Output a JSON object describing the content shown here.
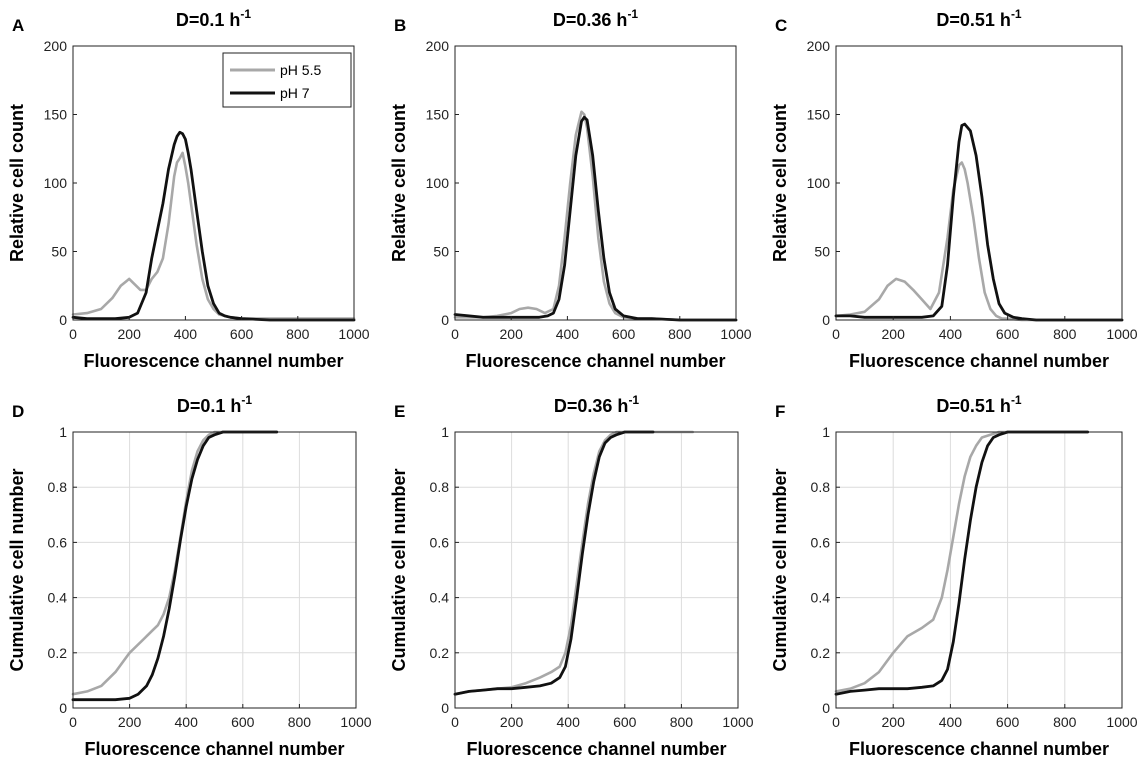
{
  "colors": {
    "ph55": "#a8a8a8",
    "ph7": "#111111"
  },
  "legend": {
    "items": [
      "pH 5.5",
      "pH 7"
    ]
  },
  "chart_data": [
    {
      "id": "A",
      "letter": "A",
      "type": "line",
      "title": "D=0.1 h",
      "title_exp": "-1",
      "xlabel": "Fluorescence channel number",
      "ylabel": "Relative cell count",
      "xlim": [
        0,
        1000
      ],
      "ylim": [
        0,
        200
      ],
      "xticks": [
        0,
        200,
        400,
        600,
        800,
        1000
      ],
      "yticks": [
        0,
        50,
        100,
        150,
        200
      ],
      "grid": false,
      "legend": "top-right",
      "series": [
        {
          "name": "pH 5.5",
          "color": "#a8a8a8",
          "x": [
            0,
            50,
            100,
            140,
            170,
            200,
            220,
            240,
            260,
            280,
            300,
            320,
            340,
            360,
            370,
            380,
            390,
            400,
            410,
            420,
            440,
            460,
            480,
            500,
            520,
            540,
            560,
            600,
            700,
            800,
            900,
            1000
          ],
          "y": [
            4,
            5,
            8,
            16,
            25,
            30,
            26,
            22,
            22,
            30,
            35,
            45,
            70,
            105,
            115,
            118,
            122,
            112,
            100,
            85,
            55,
            30,
            15,
            8,
            4,
            3,
            2,
            1,
            1,
            1,
            1,
            1
          ]
        },
        {
          "name": "pH 7",
          "color": "#111111",
          "x": [
            0,
            50,
            100,
            150,
            200,
            230,
            260,
            280,
            300,
            320,
            340,
            360,
            370,
            380,
            390,
            400,
            410,
            420,
            440,
            460,
            480,
            500,
            520,
            540,
            560,
            600,
            700,
            800,
            900,
            1000
          ],
          "y": [
            2,
            1,
            1,
            1,
            2,
            5,
            20,
            45,
            65,
            85,
            110,
            128,
            134,
            137,
            136,
            132,
            122,
            110,
            80,
            50,
            25,
            12,
            5,
            3,
            2,
            1,
            0,
            0,
            0,
            0
          ]
        }
      ]
    },
    {
      "id": "B",
      "letter": "B",
      "type": "line",
      "title": "D=0.36 h",
      "title_exp": "-1",
      "xlabel": "Fluorescence channel number",
      "ylabel": "Relative cell count",
      "xlim": [
        0,
        1000
      ],
      "ylim": [
        0,
        200
      ],
      "xticks": [
        0,
        200,
        400,
        600,
        800,
        1000
      ],
      "yticks": [
        0,
        50,
        100,
        150,
        200
      ],
      "grid": false,
      "series": [
        {
          "name": "pH 5.5",
          "color": "#a8a8a8",
          "x": [
            0,
            50,
            100,
            150,
            200,
            230,
            260,
            290,
            320,
            350,
            370,
            390,
            410,
            430,
            450,
            460,
            470,
            490,
            510,
            530,
            550,
            570,
            600,
            650,
            700,
            800,
            900,
            1000
          ],
          "y": [
            2,
            2,
            2,
            3,
            5,
            8,
            9,
            8,
            5,
            8,
            25,
            60,
            100,
            135,
            152,
            150,
            140,
            105,
            60,
            28,
            12,
            5,
            2,
            1,
            1,
            0,
            0,
            0
          ]
        },
        {
          "name": "pH 7",
          "color": "#111111",
          "x": [
            0,
            50,
            100,
            150,
            200,
            250,
            300,
            330,
            350,
            370,
            390,
            410,
            430,
            450,
            460,
            470,
            490,
            510,
            530,
            550,
            570,
            600,
            650,
            700,
            800,
            900,
            1000
          ],
          "y": [
            4,
            3,
            2,
            2,
            2,
            2,
            2,
            3,
            5,
            15,
            40,
            80,
            120,
            145,
            148,
            146,
            120,
            80,
            45,
            20,
            8,
            3,
            1,
            1,
            0,
            0,
            0
          ]
        }
      ]
    },
    {
      "id": "C",
      "letter": "C",
      "type": "line",
      "title": "D=0.51 h",
      "title_exp": "-1",
      "xlabel": "Fluorescence channel number",
      "ylabel": "Relative cell count",
      "xlim": [
        0,
        1000
      ],
      "ylim": [
        0,
        200
      ],
      "xticks": [
        0,
        200,
        400,
        600,
        800,
        1000
      ],
      "yticks": [
        0,
        50,
        100,
        150,
        200
      ],
      "grid": false,
      "series": [
        {
          "name": "pH 5.5",
          "color": "#a8a8a8",
          "x": [
            0,
            50,
            100,
            150,
            180,
            210,
            240,
            270,
            300,
            330,
            360,
            390,
            410,
            430,
            440,
            450,
            460,
            480,
            500,
            520,
            540,
            560,
            580,
            600,
            650,
            700,
            800,
            900,
            1000
          ],
          "y": [
            3,
            4,
            6,
            15,
            25,
            30,
            28,
            22,
            15,
            8,
            20,
            60,
            95,
            113,
            115,
            110,
            100,
            75,
            45,
            20,
            8,
            3,
            1,
            1,
            0,
            0,
            0,
            0,
            0
          ]
        },
        {
          "name": "pH 7",
          "color": "#111111",
          "x": [
            0,
            50,
            100,
            150,
            200,
            250,
            300,
            340,
            370,
            390,
            410,
            430,
            440,
            450,
            470,
            490,
            510,
            530,
            550,
            570,
            590,
            620,
            650,
            700,
            800,
            900,
            1000
          ],
          "y": [
            3,
            3,
            2,
            2,
            2,
            2,
            2,
            3,
            10,
            40,
            90,
            130,
            142,
            143,
            138,
            120,
            90,
            55,
            30,
            12,
            5,
            2,
            1,
            0,
            0,
            0,
            0
          ]
        }
      ]
    },
    {
      "id": "D",
      "letter": "D",
      "type": "line",
      "title": "D=0.1 h",
      "title_exp": "-1",
      "xlabel": "Fluorescence channel number",
      "ylabel": "Cumulative cell number",
      "xlim": [
        0,
        1000
      ],
      "ylim": [
        0,
        1
      ],
      "xticks": [
        0,
        200,
        400,
        600,
        800,
        1000
      ],
      "yticks": [
        0,
        0.2,
        0.4,
        0.6,
        0.8,
        1
      ],
      "grid": true,
      "series": [
        {
          "name": "pH 5.5",
          "color": "#a8a8a8",
          "x": [
            0,
            50,
            100,
            150,
            200,
            250,
            280,
            300,
            320,
            340,
            360,
            380,
            400,
            420,
            440,
            460,
            480,
            500,
            530,
            560,
            600,
            650,
            700,
            720
          ],
          "y": [
            0.05,
            0.06,
            0.08,
            0.13,
            0.2,
            0.25,
            0.28,
            0.3,
            0.34,
            0.4,
            0.5,
            0.62,
            0.75,
            0.86,
            0.93,
            0.97,
            0.99,
            1,
            1,
            1,
            1,
            1,
            1,
            1
          ]
        },
        {
          "name": "pH 7",
          "color": "#111111",
          "x": [
            0,
            50,
            100,
            150,
            200,
            230,
            260,
            280,
            300,
            320,
            340,
            360,
            380,
            400,
            420,
            440,
            460,
            480,
            500,
            530,
            560,
            600,
            650,
            700,
            720
          ],
          "y": [
            0.03,
            0.03,
            0.03,
            0.03,
            0.035,
            0.05,
            0.08,
            0.12,
            0.18,
            0.26,
            0.36,
            0.48,
            0.61,
            0.73,
            0.83,
            0.9,
            0.95,
            0.98,
            0.99,
            1,
            1,
            1,
            1,
            1,
            1
          ]
        }
      ]
    },
    {
      "id": "E",
      "letter": "E",
      "type": "line",
      "title": "D=0.36 h",
      "title_exp": "-1",
      "xlabel": "Fluorescence channel number",
      "ylabel": "Cumulative cell number",
      "xlim": [
        0,
        1000
      ],
      "ylim": [
        0,
        1
      ],
      "xticks": [
        0,
        200,
        400,
        600,
        800,
        1000
      ],
      "yticks": [
        0,
        0.2,
        0.4,
        0.6,
        0.8,
        1
      ],
      "grid": true,
      "series": [
        {
          "name": "pH 5.5",
          "color": "#a8a8a8",
          "x": [
            0,
            50,
            100,
            150,
            200,
            250,
            300,
            340,
            370,
            390,
            410,
            430,
            450,
            470,
            490,
            510,
            530,
            550,
            570,
            600,
            650,
            700,
            750,
            800,
            840
          ],
          "y": [
            0.05,
            0.06,
            0.065,
            0.07,
            0.075,
            0.09,
            0.11,
            0.13,
            0.15,
            0.2,
            0.3,
            0.45,
            0.6,
            0.74,
            0.85,
            0.93,
            0.97,
            0.99,
            1,
            1,
            1,
            1,
            1,
            1,
            1
          ]
        },
        {
          "name": "pH 7",
          "color": "#111111",
          "x": [
            0,
            50,
            100,
            150,
            200,
            250,
            300,
            340,
            370,
            390,
            410,
            430,
            450,
            470,
            490,
            510,
            530,
            550,
            570,
            600,
            650,
            700
          ],
          "y": [
            0.05,
            0.06,
            0.065,
            0.07,
            0.07,
            0.075,
            0.08,
            0.09,
            0.11,
            0.15,
            0.25,
            0.4,
            0.56,
            0.7,
            0.82,
            0.91,
            0.96,
            0.98,
            0.99,
            1,
            1,
            1
          ]
        }
      ]
    },
    {
      "id": "F",
      "letter": "F",
      "type": "line",
      "title": "D=0.51 h",
      "title_exp": "-1",
      "xlabel": "Fluorescence channel number",
      "ylabel": "Cumulative cell number",
      "xlim": [
        0,
        1000
      ],
      "ylim": [
        0,
        1
      ],
      "xticks": [
        0,
        200,
        400,
        600,
        800,
        1000
      ],
      "yticks": [
        0,
        0.2,
        0.4,
        0.6,
        0.8,
        1
      ],
      "grid": true,
      "series": [
        {
          "name": "pH 5.5",
          "color": "#a8a8a8",
          "x": [
            0,
            50,
            100,
            150,
            200,
            250,
            300,
            340,
            370,
            390,
            410,
            430,
            450,
            470,
            490,
            510,
            540,
            570,
            600,
            700,
            800,
            880
          ],
          "y": [
            0.06,
            0.07,
            0.09,
            0.13,
            0.2,
            0.26,
            0.29,
            0.32,
            0.4,
            0.5,
            0.62,
            0.74,
            0.84,
            0.91,
            0.95,
            0.98,
            0.99,
            1,
            1,
            1,
            1,
            1
          ]
        },
        {
          "name": "pH 7",
          "color": "#111111",
          "x": [
            0,
            50,
            100,
            150,
            200,
            250,
            300,
            340,
            370,
            390,
            410,
            430,
            450,
            470,
            490,
            510,
            530,
            550,
            570,
            600,
            650,
            700,
            800,
            880
          ],
          "y": [
            0.05,
            0.06,
            0.065,
            0.07,
            0.07,
            0.07,
            0.075,
            0.08,
            0.1,
            0.14,
            0.24,
            0.38,
            0.54,
            0.68,
            0.8,
            0.89,
            0.95,
            0.98,
            0.99,
            1,
            1,
            1,
            1,
            1
          ]
        }
      ]
    }
  ]
}
